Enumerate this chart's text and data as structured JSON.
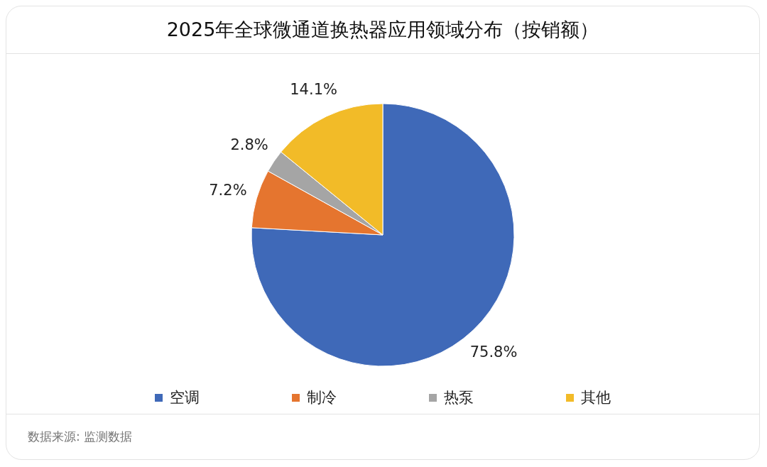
{
  "chart_data": {
    "type": "pie",
    "title": "2025年全球微通道换热器应用领域分布（按销额）",
    "categories": [
      "空调",
      "制冷",
      "热泵",
      "其他"
    ],
    "values": [
      75.8,
      7.2,
      2.8,
      14.1
    ],
    "value_labels": [
      "75.8%",
      "7.2%",
      "2.8%",
      "14.1%"
    ],
    "colors": [
      "#3f69b8",
      "#e5752f",
      "#a5a5a5",
      "#f2bb28"
    ],
    "legend": "bottom",
    "annotations": [
      "数据来源: 监测数据"
    ]
  }
}
